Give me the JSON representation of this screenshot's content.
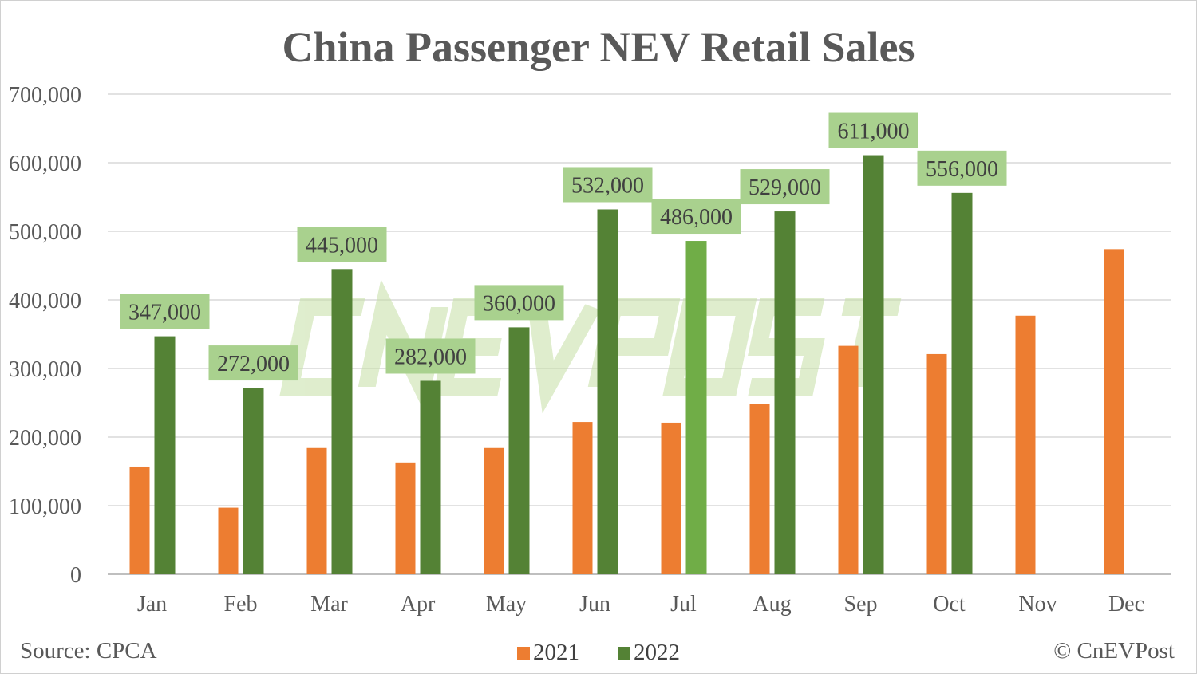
{
  "chart_data": {
    "type": "bar",
    "title": "China Passenger NEV Retail Sales",
    "categories": [
      "Jan",
      "Feb",
      "Mar",
      "Apr",
      "May",
      "Jun",
      "Jul",
      "Aug",
      "Sep",
      "Oct",
      "Nov",
      "Dec"
    ],
    "series": [
      {
        "name": "2021",
        "color": "#ed7d31",
        "values": [
          157000,
          97000,
          184000,
          163000,
          184000,
          222000,
          221000,
          248000,
          333000,
          321000,
          377000,
          474000
        ]
      },
      {
        "name": "2022",
        "color": "#548235",
        "values": [
          347000,
          272000,
          445000,
          282000,
          360000,
          532000,
          486000,
          529000,
          611000,
          556000,
          null,
          null
        ],
        "data_labels": [
          "347,000",
          "272,000",
          "445,000",
          "282,000",
          "360,000",
          "532,000",
          "486,000",
          "529,000",
          "611,000",
          "556,000"
        ]
      }
    ],
    "highlight_color": "#70ad47",
    "label_bg_color": "#a9d18e",
    "ylim": [
      0,
      700000
    ],
    "yticks": [
      "0",
      "100,000",
      "200,000",
      "300,000",
      "400,000",
      "500,000",
      "600,000",
      "700,000"
    ],
    "grid": true,
    "legend_placement": "bottom",
    "watermark": "CNEVPOST"
  },
  "footer": {
    "source": "Source: CPCA",
    "copyright": "© CnEVPost"
  }
}
